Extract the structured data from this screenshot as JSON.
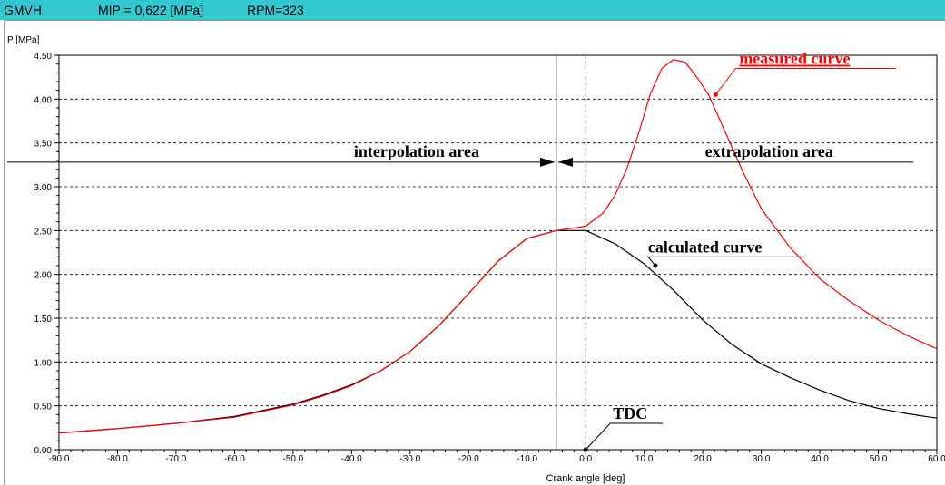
{
  "window": {
    "title_prefix": "GMVH",
    "mip_text": "MIP = 0,622 [MPa]",
    "rpm_text": "RPM=323",
    "title_bg": "#32c8d2"
  },
  "chart_data": {
    "type": "line",
    "title": "",
    "xlabel": "Crank angle [deg]",
    "ylabel": "P [MPa]",
    "xlim": [
      -90,
      60
    ],
    "ylim": [
      0,
      4.5
    ],
    "x_ticks": [
      "-90.0",
      "-80.0",
      "-70.0",
      "-60.0",
      "-50.0",
      "-40.0",
      "-30.0",
      "-20.0",
      "-10.0",
      "0.0",
      "10.0",
      "20.0",
      "30.0",
      "40.0",
      "50.0",
      "60.0"
    ],
    "y_ticks": [
      "0.00",
      "0.50",
      "1.00",
      "1.50",
      "2.00",
      "2.50",
      "3.00",
      "3.50",
      "4.00",
      "4.50"
    ],
    "grid": "dotted horizontal at major y ticks",
    "series": [
      {
        "name": "calculated curve",
        "color": "#000000",
        "x": [
          -90,
          -80,
          -70,
          -60,
          -50,
          -45,
          -40,
          -35,
          -30,
          -25,
          -20,
          -15,
          -10,
          -5,
          0,
          5,
          10,
          15,
          20,
          25,
          30,
          35,
          40,
          45,
          50,
          55,
          60
        ],
        "y": [
          0.19,
          0.24,
          0.3,
          0.38,
          0.52,
          0.62,
          0.74,
          0.9,
          1.12,
          1.42,
          1.78,
          2.15,
          2.41,
          2.5,
          2.5,
          2.35,
          2.12,
          1.82,
          1.48,
          1.2,
          0.98,
          0.82,
          0.68,
          0.56,
          0.47,
          0.41,
          0.36
        ]
      },
      {
        "name": "measured curve",
        "color": "#ff0000",
        "x": [
          -90,
          -80,
          -70,
          -60,
          -50,
          -45,
          -40,
          -35,
          -30,
          -25,
          -20,
          -15,
          -10,
          -5,
          0,
          3,
          5,
          7,
          9,
          11,
          13,
          15,
          17,
          19,
          21,
          23,
          25,
          27,
          30,
          35,
          40,
          45,
          50,
          55,
          60
        ],
        "y": [
          0.19,
          0.24,
          0.3,
          0.37,
          0.51,
          0.61,
          0.73,
          0.9,
          1.12,
          1.42,
          1.78,
          2.15,
          2.41,
          2.5,
          2.55,
          2.7,
          2.9,
          3.2,
          3.6,
          4.05,
          4.35,
          4.45,
          4.42,
          4.25,
          4.05,
          3.75,
          3.45,
          3.15,
          2.75,
          2.3,
          1.95,
          1.7,
          1.48,
          1.3,
          1.15
        ]
      }
    ],
    "markers": {
      "interpolation_boundary_x": -5,
      "tdc_x": 0
    },
    "annotations": {
      "interpolation": "interpolation area",
      "extrapolation": "extrapolation area",
      "measured": "measured curve",
      "calculated": "calculated curve",
      "tdc": "TDC",
      "area_arrow_y": 3.28
    }
  }
}
